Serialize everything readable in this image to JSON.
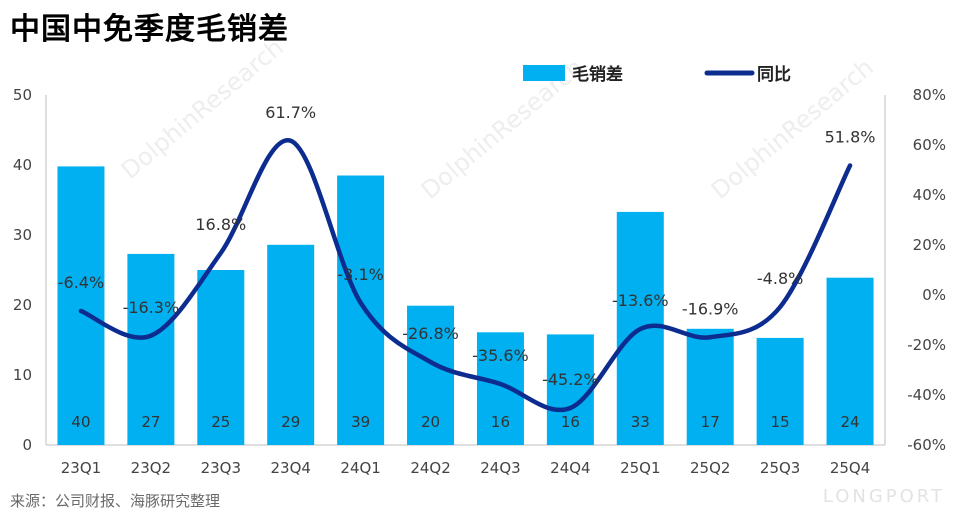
{
  "title": "中国中免季度毛销差",
  "source": "来源：公司财报、海豚研究整理",
  "watermark_logo": "LONGPORT",
  "watermark_text": "DolphinResearch",
  "colors": {
    "bar": "#00b0f0",
    "line": "#0d2c8f"
  },
  "chart_data": {
    "type": "bar+line",
    "categories": [
      "23Q1",
      "23Q2",
      "23Q3",
      "23Q4",
      "24Q1",
      "24Q2",
      "24Q3",
      "24Q4",
      "25Q1",
      "25Q2",
      "25Q3",
      "25Q4"
    ],
    "series": [
      {
        "name": "毛销差",
        "type": "bar",
        "axis": "left",
        "values": [
          39.8,
          27.3,
          25.0,
          28.6,
          38.5,
          19.9,
          16.1,
          15.8,
          33.3,
          16.6,
          15.3,
          23.9
        ],
        "labels": [
          "40",
          "27",
          "25",
          "29",
          "39",
          "20",
          "16",
          "16",
          "33",
          "17",
          "15",
          "24"
        ]
      },
      {
        "name": "同比",
        "type": "line",
        "axis": "right",
        "values": [
          -6.4,
          -16.3,
          16.8,
          61.7,
          -3.1,
          -26.8,
          -35.6,
          -45.2,
          -13.6,
          -16.9,
          -4.8,
          51.8
        ],
        "labels": [
          "-6.4%",
          "-16.3%",
          "16.8%",
          "61.7%",
          "-3.1%",
          "-26.8%",
          "-35.6%",
          "-45.2%",
          "-13.6%",
          "-16.9%",
          "-4.8%",
          "51.8%"
        ]
      }
    ],
    "y_left": {
      "min": 0,
      "max": 50,
      "ticks": [
        "0",
        "10",
        "20",
        "30",
        "40",
        "50"
      ]
    },
    "y_right": {
      "min": -60,
      "max": 80,
      "ticks": [
        "-60%",
        "-40%",
        "-20%",
        "0%",
        "20%",
        "40%",
        "60%",
        "80%"
      ]
    },
    "grid": false,
    "legend": {
      "position": "top-center"
    }
  }
}
